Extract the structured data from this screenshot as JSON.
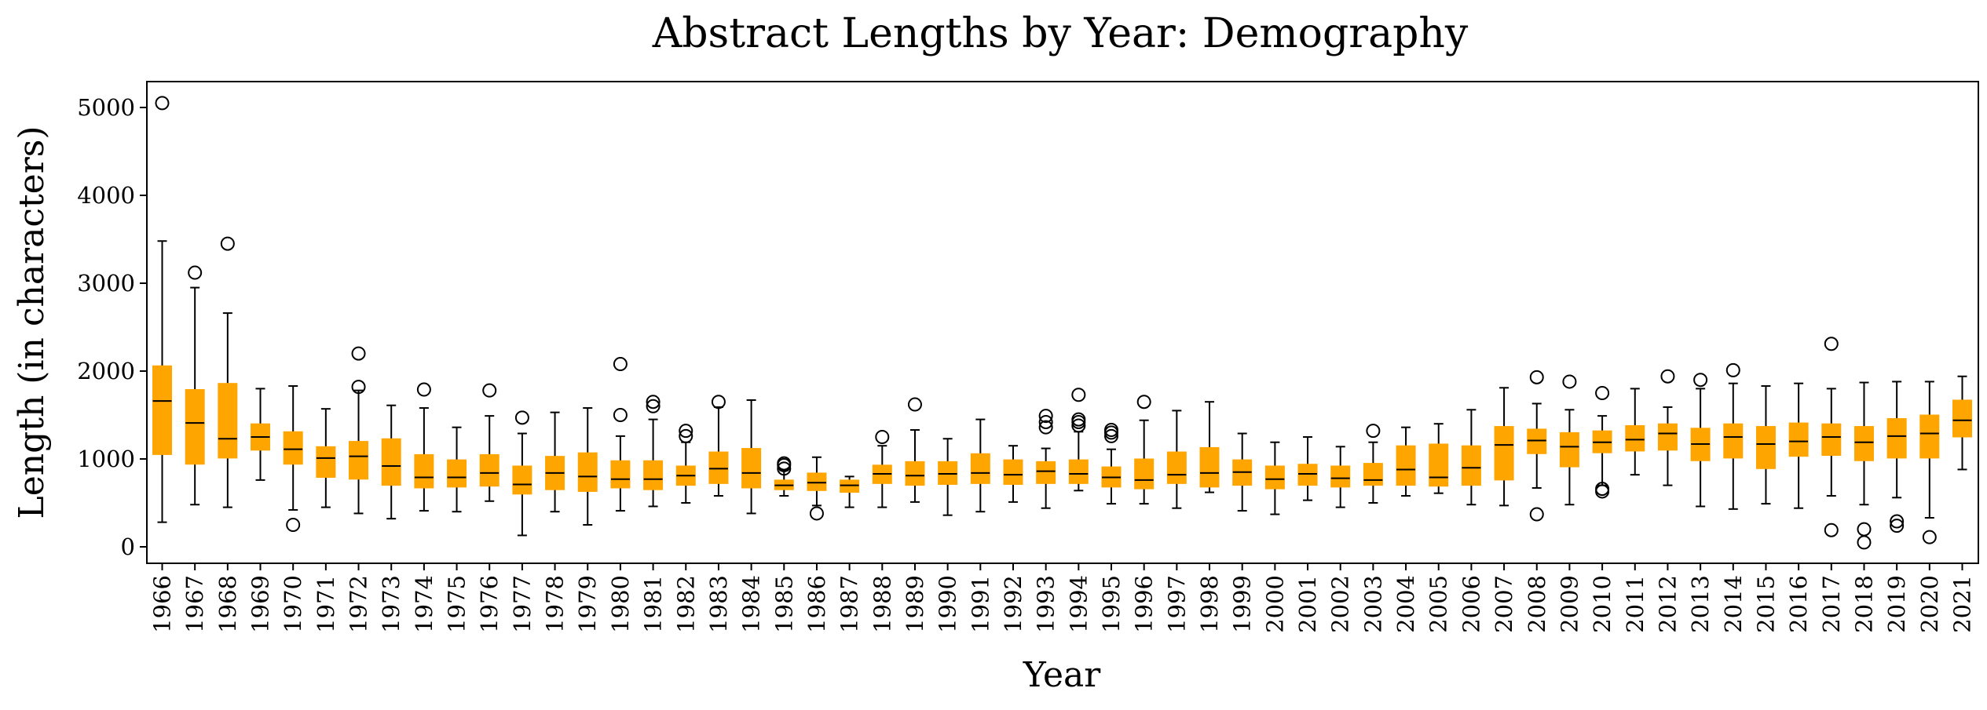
{
  "chart_data": {
    "type": "box",
    "title": "Abstract Lengths by Year: Demography",
    "xlabel": "Year",
    "ylabel": "Length (in characters)",
    "ylim": [
      -200,
      5300
    ],
    "yticks": [
      0,
      1000,
      2000,
      3000,
      4000,
      5000
    ],
    "grid": false,
    "box_color": "#ffa500",
    "median_color": "#000000",
    "whisker_color": "#000000",
    "categories": [
      "1966",
      "1967",
      "1968",
      "1969",
      "1970",
      "1971",
      "1972",
      "1973",
      "1974",
      "1975",
      "1976",
      "1977",
      "1978",
      "1979",
      "1980",
      "1981",
      "1982",
      "1983",
      "1984",
      "1985",
      "1986",
      "1987",
      "1988",
      "1989",
      "1990",
      "1991",
      "1992",
      "1993",
      "1994",
      "1995",
      "1996",
      "1997",
      "1998",
      "1999",
      "2000",
      "2001",
      "2002",
      "2003",
      "2004",
      "2005",
      "2006",
      "2007",
      "2008",
      "2009",
      "2010",
      "2011",
      "2012",
      "2013",
      "2014",
      "2015",
      "2016",
      "2017",
      "2018",
      "2019",
      "2020",
      "2021"
    ],
    "boxes": [
      {
        "whislo": 280,
        "q1": 1050,
        "med": 1660,
        "q3": 2060,
        "whishi": 3480,
        "fliers": [
          5050
        ]
      },
      {
        "whislo": 480,
        "q1": 940,
        "med": 1410,
        "q3": 1790,
        "whishi": 2950,
        "fliers": [
          3120
        ]
      },
      {
        "whislo": 450,
        "q1": 1010,
        "med": 1230,
        "q3": 1860,
        "whishi": 2660,
        "fliers": [
          3450
        ]
      },
      {
        "whislo": 760,
        "q1": 1100,
        "med": 1250,
        "q3": 1400,
        "whishi": 1800,
        "fliers": []
      },
      {
        "whislo": 420,
        "q1": 940,
        "med": 1110,
        "q3": 1310,
        "whishi": 1830,
        "fliers": [
          250
        ]
      },
      {
        "whislo": 450,
        "q1": 790,
        "med": 1010,
        "q3": 1140,
        "whishi": 1570,
        "fliers": []
      },
      {
        "whislo": 380,
        "q1": 770,
        "med": 1030,
        "q3": 1200,
        "whishi": 1780,
        "fliers": [
          1820,
          2200
        ]
      },
      {
        "whislo": 320,
        "q1": 700,
        "med": 920,
        "q3": 1230,
        "whishi": 1610,
        "fliers": []
      },
      {
        "whislo": 410,
        "q1": 670,
        "med": 790,
        "q3": 1050,
        "whishi": 1580,
        "fliers": [
          1790
        ]
      },
      {
        "whislo": 400,
        "q1": 680,
        "med": 790,
        "q3": 990,
        "whishi": 1360,
        "fliers": []
      },
      {
        "whislo": 520,
        "q1": 690,
        "med": 840,
        "q3": 1050,
        "whishi": 1490,
        "fliers": [
          1780
        ]
      },
      {
        "whislo": 130,
        "q1": 600,
        "med": 710,
        "q3": 920,
        "whishi": 1290,
        "fliers": [
          1470
        ]
      },
      {
        "whislo": 400,
        "q1": 650,
        "med": 840,
        "q3": 1030,
        "whishi": 1530,
        "fliers": []
      },
      {
        "whislo": 250,
        "q1": 630,
        "med": 800,
        "q3": 1070,
        "whishi": 1580,
        "fliers": []
      },
      {
        "whislo": 410,
        "q1": 670,
        "med": 770,
        "q3": 980,
        "whishi": 1260,
        "fliers": [
          1500,
          2080
        ]
      },
      {
        "whislo": 460,
        "q1": 650,
        "med": 770,
        "q3": 980,
        "whishi": 1450,
        "fliers": [
          1600,
          1650
        ]
      },
      {
        "whislo": 500,
        "q1": 700,
        "med": 810,
        "q3": 920,
        "whishi": 1190,
        "fliers": [
          1260,
          1320
        ]
      },
      {
        "whislo": 580,
        "q1": 720,
        "med": 890,
        "q3": 1080,
        "whishi": 1590,
        "fliers": [
          1650
        ]
      },
      {
        "whislo": 380,
        "q1": 670,
        "med": 840,
        "q3": 1120,
        "whishi": 1670,
        "fliers": []
      },
      {
        "whislo": 580,
        "q1": 650,
        "med": 700,
        "q3": 760,
        "whishi": 870,
        "fliers": [
          890,
          930,
          950
        ]
      },
      {
        "whislo": 470,
        "q1": 640,
        "med": 730,
        "q3": 840,
        "whishi": 1020,
        "fliers": [
          380
        ]
      },
      {
        "whislo": 450,
        "q1": 620,
        "med": 700,
        "q3": 760,
        "whishi": 800,
        "fliers": []
      },
      {
        "whislo": 450,
        "q1": 720,
        "med": 830,
        "q3": 930,
        "whishi": 1150,
        "fliers": [
          1250
        ]
      },
      {
        "whislo": 510,
        "q1": 700,
        "med": 810,
        "q3": 970,
        "whishi": 1330,
        "fliers": [
          1620
        ]
      },
      {
        "whislo": 360,
        "q1": 710,
        "med": 830,
        "q3": 970,
        "whishi": 1230,
        "fliers": []
      },
      {
        "whislo": 400,
        "q1": 720,
        "med": 840,
        "q3": 1060,
        "whishi": 1450,
        "fliers": []
      },
      {
        "whislo": 510,
        "q1": 710,
        "med": 820,
        "q3": 990,
        "whishi": 1150,
        "fliers": []
      },
      {
        "whislo": 440,
        "q1": 720,
        "med": 860,
        "q3": 970,
        "whishi": 1120,
        "fliers": [
          1360,
          1420,
          1490
        ]
      },
      {
        "whislo": 640,
        "q1": 720,
        "med": 830,
        "q3": 990,
        "whishi": 1310,
        "fliers": [
          1380,
          1420,
          1450,
          1730
        ]
      },
      {
        "whislo": 490,
        "q1": 680,
        "med": 790,
        "q3": 910,
        "whishi": 1110,
        "fliers": [
          1260,
          1300,
          1330
        ]
      },
      {
        "whislo": 490,
        "q1": 660,
        "med": 760,
        "q3": 1000,
        "whishi": 1440,
        "fliers": [
          1650
        ]
      },
      {
        "whislo": 440,
        "q1": 720,
        "med": 820,
        "q3": 1080,
        "whishi": 1550,
        "fliers": []
      },
      {
        "whislo": 620,
        "q1": 680,
        "med": 840,
        "q3": 1130,
        "whishi": 1650,
        "fliers": []
      },
      {
        "whislo": 410,
        "q1": 700,
        "med": 850,
        "q3": 990,
        "whishi": 1290,
        "fliers": []
      },
      {
        "whislo": 370,
        "q1": 660,
        "med": 770,
        "q3": 920,
        "whishi": 1190,
        "fliers": []
      },
      {
        "whislo": 530,
        "q1": 700,
        "med": 830,
        "q3": 940,
        "whishi": 1250,
        "fliers": []
      },
      {
        "whislo": 450,
        "q1": 680,
        "med": 780,
        "q3": 920,
        "whishi": 1140,
        "fliers": []
      },
      {
        "whislo": 500,
        "q1": 700,
        "med": 760,
        "q3": 950,
        "whishi": 1190,
        "fliers": [
          1320
        ]
      },
      {
        "whislo": 580,
        "q1": 700,
        "med": 880,
        "q3": 1150,
        "whishi": 1360,
        "fliers": []
      },
      {
        "whislo": 610,
        "q1": 690,
        "med": 790,
        "q3": 1170,
        "whishi": 1400,
        "fliers": []
      },
      {
        "whislo": 480,
        "q1": 700,
        "med": 900,
        "q3": 1150,
        "whishi": 1560,
        "fliers": []
      },
      {
        "whislo": 470,
        "q1": 760,
        "med": 1160,
        "q3": 1370,
        "whishi": 1810,
        "fliers": []
      },
      {
        "whislo": 670,
        "q1": 1060,
        "med": 1210,
        "q3": 1340,
        "whishi": 1630,
        "fliers": [
          370,
          1930
        ]
      },
      {
        "whislo": 480,
        "q1": 910,
        "med": 1140,
        "q3": 1300,
        "whishi": 1560,
        "fliers": [
          1880
        ]
      },
      {
        "whislo": 700,
        "q1": 1070,
        "med": 1190,
        "q3": 1320,
        "whishi": 1490,
        "fliers": [
          630,
          660,
          1750
        ]
      },
      {
        "whislo": 820,
        "q1": 1090,
        "med": 1220,
        "q3": 1380,
        "whishi": 1800,
        "fliers": []
      },
      {
        "whislo": 700,
        "q1": 1100,
        "med": 1290,
        "q3": 1400,
        "whishi": 1590,
        "fliers": [
          1940
        ]
      },
      {
        "whislo": 460,
        "q1": 980,
        "med": 1170,
        "q3": 1350,
        "whishi": 1800,
        "fliers": [
          1900
        ]
      },
      {
        "whislo": 430,
        "q1": 1010,
        "med": 1250,
        "q3": 1400,
        "whishi": 1860,
        "fliers": [
          2010
        ]
      },
      {
        "whislo": 490,
        "q1": 890,
        "med": 1170,
        "q3": 1370,
        "whishi": 1830,
        "fliers": []
      },
      {
        "whislo": 440,
        "q1": 1030,
        "med": 1200,
        "q3": 1410,
        "whishi": 1860,
        "fliers": []
      },
      {
        "whislo": 580,
        "q1": 1040,
        "med": 1250,
        "q3": 1400,
        "whishi": 1800,
        "fliers": [
          190,
          2310
        ]
      },
      {
        "whislo": 480,
        "q1": 980,
        "med": 1190,
        "q3": 1370,
        "whishi": 1870,
        "fliers": [
          50,
          200
        ]
      },
      {
        "whislo": 560,
        "q1": 1010,
        "med": 1260,
        "q3": 1460,
        "whishi": 1880,
        "fliers": [
          240,
          290
        ]
      },
      {
        "whislo": 330,
        "q1": 1010,
        "med": 1290,
        "q3": 1500,
        "whishi": 1880,
        "fliers": [
          110
        ]
      },
      {
        "whislo": 880,
        "q1": 1250,
        "med": 1440,
        "q3": 1670,
        "whishi": 1940,
        "fliers": []
      }
    ]
  }
}
